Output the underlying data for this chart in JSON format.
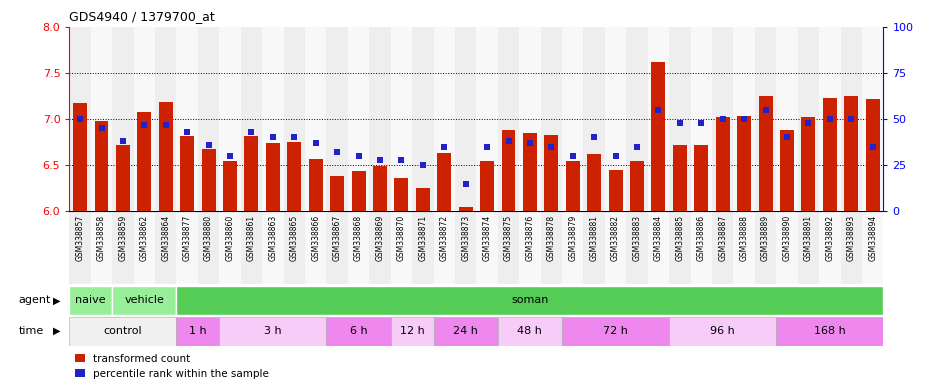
{
  "title": "GDS4940 / 1379700_at",
  "samples": [
    "GSM338857",
    "GSM338858",
    "GSM338859",
    "GSM338862",
    "GSM338864",
    "GSM338877",
    "GSM338880",
    "GSM338860",
    "GSM338861",
    "GSM338863",
    "GSM338865",
    "GSM338866",
    "GSM338867",
    "GSM338868",
    "GSM338869",
    "GSM338870",
    "GSM338871",
    "GSM338872",
    "GSM338873",
    "GSM338874",
    "GSM338875",
    "GSM338876",
    "GSM338878",
    "GSM338879",
    "GSM338881",
    "GSM338882",
    "GSM338883",
    "GSM338884",
    "GSM338885",
    "GSM338886",
    "GSM338887",
    "GSM338888",
    "GSM338889",
    "GSM338890",
    "GSM338891",
    "GSM338892",
    "GSM338893",
    "GSM338894"
  ],
  "bar_values": [
    7.17,
    6.98,
    6.72,
    7.08,
    7.18,
    6.82,
    6.67,
    6.55,
    6.82,
    6.74,
    6.75,
    6.57,
    6.38,
    6.44,
    6.49,
    6.36,
    6.25,
    6.63,
    6.05,
    6.55,
    6.88,
    6.85,
    6.83,
    6.55,
    6.62,
    6.45,
    6.55,
    7.62,
    6.72,
    6.72,
    7.02,
    7.03,
    7.25,
    6.88,
    7.02,
    7.23,
    7.25,
    7.22
  ],
  "percentile_values": [
    50,
    45,
    38,
    47,
    47,
    43,
    36,
    30,
    43,
    40,
    40,
    37,
    32,
    30,
    28,
    28,
    25,
    35,
    15,
    35,
    38,
    37,
    35,
    30,
    40,
    30,
    35,
    55,
    48,
    48,
    50,
    50,
    55,
    40,
    48,
    50,
    50,
    35
  ],
  "ylim_left": [
    6.0,
    8.0
  ],
  "ylim_right": [
    0,
    100
  ],
  "yticks_left": [
    6.0,
    6.5,
    7.0,
    7.5,
    8.0
  ],
  "yticks_right": [
    0,
    25,
    50,
    75,
    100
  ],
  "bar_color": "#cc2200",
  "dot_color": "#2222cc",
  "agent_groups": [
    {
      "label": "naive",
      "start": 0,
      "end": 2,
      "color": "#99ee99"
    },
    {
      "label": "vehicle",
      "start": 2,
      "end": 5,
      "color": "#99ee99"
    },
    {
      "label": "soman",
      "start": 5,
      "end": 38,
      "color": "#55cc55"
    }
  ],
  "time_groups": [
    {
      "label": "control",
      "start": 0,
      "end": 5,
      "color": "#f0f0f0"
    },
    {
      "label": "1 h",
      "start": 5,
      "end": 7,
      "color": "#ee88ee"
    },
    {
      "label": "3 h",
      "start": 7,
      "end": 12,
      "color": "#f8ccf8"
    },
    {
      "label": "6 h",
      "start": 12,
      "end": 15,
      "color": "#ee88ee"
    },
    {
      "label": "12 h",
      "start": 15,
      "end": 17,
      "color": "#f8ccf8"
    },
    {
      "label": "24 h",
      "start": 17,
      "end": 20,
      "color": "#ee88ee"
    },
    {
      "label": "48 h",
      "start": 20,
      "end": 23,
      "color": "#f8ccf8"
    },
    {
      "label": "72 h",
      "start": 23,
      "end": 28,
      "color": "#ee88ee"
    },
    {
      "label": "96 h",
      "start": 28,
      "end": 33,
      "color": "#f8ccf8"
    },
    {
      "label": "168 h",
      "start": 33,
      "end": 38,
      "color": "#ee88ee"
    }
  ]
}
